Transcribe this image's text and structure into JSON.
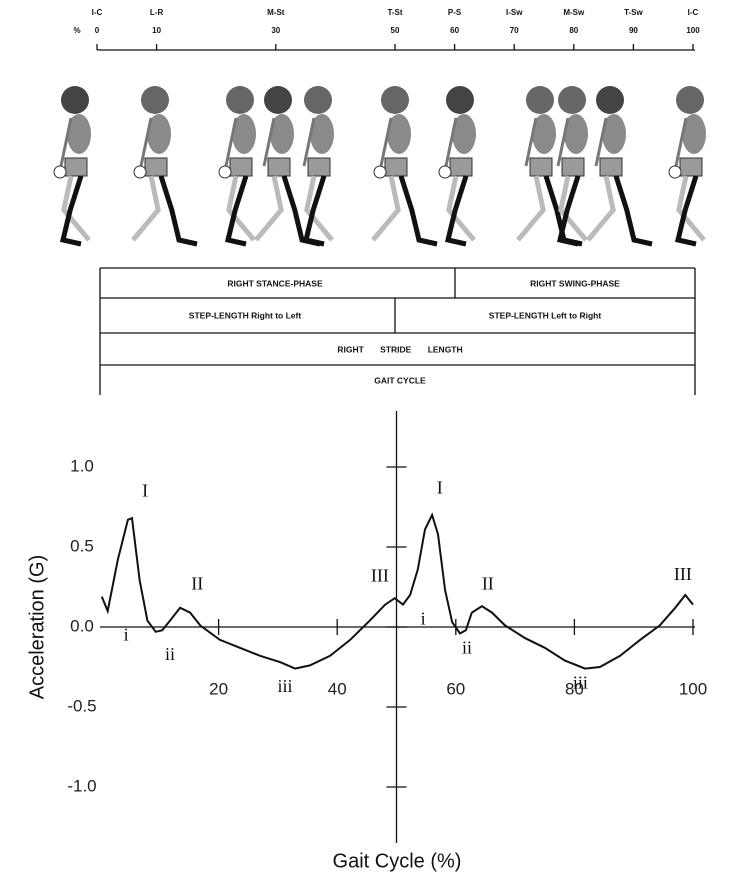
{
  "gait_scale": {
    "unit_label": "%",
    "ticks": [
      {
        "phase": "I-C",
        "percent": 0
      },
      {
        "phase": "L-R",
        "percent": 10
      },
      {
        "phase": "M-St",
        "percent": 30
      },
      {
        "phase": "T-St",
        "percent": 50
      },
      {
        "phase": "P-S",
        "percent": 60
      },
      {
        "phase": "I-Sw",
        "percent": 70
      },
      {
        "phase": "M-Sw",
        "percent": 80
      },
      {
        "phase": "T-Sw",
        "percent": 90
      },
      {
        "phase": "I-C",
        "percent": 100
      }
    ]
  },
  "phase_table": {
    "right_stance_phase": "RIGHT STANCE-PHASE",
    "right_swing_phase": "RIGHT SWING-PHASE",
    "step_length_right_to_left": "STEP-LENGTH Right to Left",
    "step_length_left_to_right": "STEP-LENGTH Left to Right",
    "stride_length": "RIGHT STRIDE LENGTH",
    "gait_cycle": "GAIT CYCLE"
  },
  "chart_data": {
    "type": "line",
    "x_label": "Gait Cycle (%)",
    "y_label": "Acceleration (G)",
    "color": "#111111",
    "x": [
      0.3,
      1.3,
      3,
      4.7,
      5.4,
      6.7,
      8,
      9.4,
      10.5,
      11.8,
      13.5,
      15.2,
      16.9,
      20.2,
      23.6,
      27,
      30.4,
      32.9,
      35.4,
      38.8,
      42.2,
      45.5,
      48.1,
      49.7,
      51.1,
      52.3,
      53.6,
      54.8,
      56,
      57,
      58.2,
      59.4,
      60.7,
      61.7,
      62.7,
      64.4,
      66.1,
      68.3,
      71.7,
      75,
      78.4,
      81.8,
      84.3,
      87.7,
      91.1,
      94.4,
      97,
      98.7,
      100
    ],
    "values": [
      0.19,
      0.1,
      0.42,
      0.67,
      0.68,
      0.29,
      0.04,
      -0.03,
      -0.02,
      0.04,
      0.12,
      0.09,
      0.01,
      -0.08,
      -0.13,
      -0.18,
      -0.22,
      -0.26,
      -0.24,
      -0.18,
      -0.08,
      0.04,
      0.14,
      0.18,
      0.14,
      0.2,
      0.36,
      0.61,
      0.7,
      0.58,
      0.23,
      0.03,
      -0.04,
      -0.02,
      0.09,
      0.13,
      0.09,
      0.01,
      -0.07,
      -0.13,
      -0.21,
      -0.26,
      -0.25,
      -0.18,
      -0.08,
      0.01,
      0.12,
      0.2,
      0.14
    ],
    "xlim": [
      0,
      100
    ],
    "ylim": [
      -1.35,
      1.35
    ],
    "xticks": [
      20,
      40,
      60,
      80,
      100
    ],
    "yticks": [
      {
        "value": 1,
        "label": "1.0"
      },
      {
        "value": 0.5,
        "label": "0.5"
      },
      {
        "value": 0,
        "label": "0.0"
      },
      {
        "value": -0.5,
        "label": "-0.5"
      },
      {
        "value": -1,
        "label": "-1.0"
      }
    ],
    "annotations": [
      {
        "text": "I",
        "x": 7.6,
        "y": 0.84
      },
      {
        "text": "I",
        "x": 57.3,
        "y": 0.86
      },
      {
        "text": "II",
        "x": 16.4,
        "y": 0.26
      },
      {
        "text": "II",
        "x": 65.4,
        "y": 0.26
      },
      {
        "text": "III",
        "x": 47.2,
        "y": 0.31
      },
      {
        "text": "III",
        "x": 98.3,
        "y": 0.32
      },
      {
        "text": "i",
        "x": 4.4,
        "y": -0.06
      },
      {
        "text": "i",
        "x": 54.5,
        "y": 0.04
      },
      {
        "text": "ii",
        "x": 11.8,
        "y": -0.18
      },
      {
        "text": "ii",
        "x": 61.9,
        "y": -0.14
      },
      {
        "text": "iii",
        "x": 31.2,
        "y": -0.38
      },
      {
        "text": "iii",
        "x": 81,
        "y": -0.36
      }
    ]
  }
}
